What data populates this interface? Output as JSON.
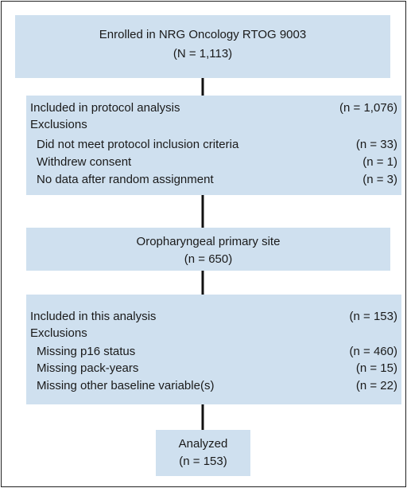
{
  "nodes": [
    {
      "lines": [
        "Enrolled in NRG Oncology RTOG 9003",
        "(N = 1,113)"
      ]
    },
    {
      "rows": [
        {
          "label": "Included in protocol analysis",
          "count": "(n = 1,076)"
        },
        {
          "label": "Exclusions"
        },
        {
          "label": "Did not meet protocol inclusion criteria",
          "count": "(n = 33)"
        },
        {
          "label": "Withdrew consent",
          "count": "(n = 1)"
        },
        {
          "label": "No data after random assignment",
          "count": "(n = 3)"
        }
      ]
    },
    {
      "lines": [
        "Oropharyngeal primary site",
        "(n = 650)"
      ]
    },
    {
      "rows": [
        {
          "label": "Included in this analysis",
          "count": "(n = 153)"
        },
        {
          "label": "Exclusions"
        },
        {
          "label": "Missing p16 status",
          "count": "(n = 460)"
        },
        {
          "label": "Missing pack-years",
          "count": "(n = 15)"
        },
        {
          "label": "Missing other baseline variable(s)",
          "count": "(n = 22)"
        }
      ]
    },
    {
      "lines": [
        "Analyzed",
        "(n = 153)"
      ]
    }
  ]
}
